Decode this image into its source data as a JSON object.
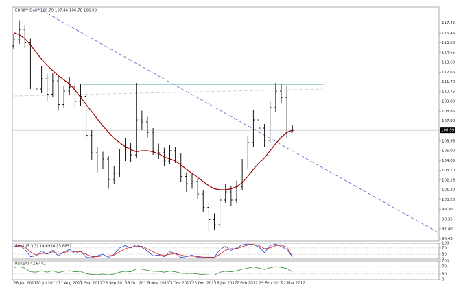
{
  "chart_data": [
    {
      "type": "ohlc",
      "title": "EURJPY,Daily 106.79 107.46 106.78 106.99",
      "categories": [
        "28 Jun 2011",
        null,
        null,
        null,
        "20 Jul 2011",
        null,
        null,
        null,
        "11 Aug 2011",
        null,
        null,
        null,
        "2 Sep 2011",
        null,
        null,
        null,
        "26 Sep 2011",
        null,
        null,
        null,
        "18 Oct 2011",
        null,
        null,
        null,
        "9 Nov 2011",
        null,
        null,
        null,
        "1 Dec 2011",
        null,
        null,
        null,
        "23 Dec 2011",
        null,
        null,
        null,
        "16 Jan 2012",
        null,
        null,
        null,
        "7 Feb 2012",
        null,
        null,
        null,
        "29 Feb 2012",
        null,
        null,
        null,
        "22 Mar 2012",
        null,
        null
      ],
      "open": [
        115.2,
        115.8,
        116.8,
        115.5,
        111.5,
        111.0,
        112.0,
        110.5,
        111.8,
        109.5,
        110.8,
        111.2,
        109.8,
        110.3,
        106.5,
        104.8,
        103.5,
        104.2,
        102.2,
        102.8,
        104.5,
        105.3,
        104.6,
        108.0,
        107.8,
        106.8,
        105.0,
        104.8,
        104.0,
        105.0,
        104.3,
        102.5,
        101.8,
        102.0,
        100.8,
        99.5,
        98.3,
        97.8,
        100.2,
        101.0,
        100.2,
        101.5,
        103.5,
        105.8,
        108.0,
        107.2,
        106.0,
        109.2,
        110.8,
        110.2,
        106.79
      ],
      "high": [
        116.4,
        117.7,
        117.2,
        115.9,
        112.6,
        113.2,
        112.5,
        112.6,
        112.3,
        111.3,
        112.2,
        111.6,
        111.5,
        110.8,
        107.0,
        105.4,
        104.9,
        104.5,
        103.5,
        105.2,
        106.2,
        105.8,
        111.6,
        108.9,
        108.3,
        107.2,
        105.7,
        105.3,
        105.6,
        105.4,
        104.8,
        102.9,
        102.8,
        102.3,
        101.2,
        100.0,
        98.9,
        100.8,
        101.8,
        101.6,
        102.1,
        104.2,
        106.4,
        109.0,
        108.6,
        107.6,
        109.8,
        111.6,
        111.5,
        111.3,
        107.46
      ],
      "low": [
        114.9,
        115.4,
        115.0,
        111.0,
        110.4,
        110.6,
        109.8,
        110.2,
        108.9,
        109.2,
        110.4,
        109.2,
        109.4,
        106.1,
        104.1,
        102.9,
        103.2,
        101.3,
        101.8,
        102.4,
        104.0,
        103.9,
        104.3,
        107.0,
        106.3,
        104.6,
        104.2,
        103.5,
        103.7,
        103.8,
        102.0,
        101.0,
        101.3,
        100.3,
        99.0,
        97.1,
        97.3,
        97.6,
        99.9,
        99.6,
        99.9,
        101.2,
        103.2,
        105.4,
        106.5,
        105.4,
        105.8,
        108.8,
        109.6,
        106.2,
        106.78
      ],
      "close": [
        115.8,
        116.8,
        115.5,
        111.5,
        111.0,
        112.0,
        110.5,
        111.8,
        109.5,
        110.8,
        111.2,
        109.8,
        110.3,
        106.5,
        104.8,
        103.5,
        104.2,
        102.2,
        102.8,
        104.5,
        105.3,
        104.6,
        108.0,
        107.8,
        106.8,
        105.0,
        104.8,
        104.0,
        105.0,
        104.3,
        102.5,
        101.8,
        102.0,
        100.8,
        99.5,
        98.3,
        97.8,
        100.2,
        101.0,
        100.2,
        101.5,
        103.5,
        105.8,
        108.0,
        107.2,
        106.0,
        109.2,
        110.8,
        110.2,
        106.8,
        106.99
      ],
      "color": "#000000",
      "ma": {
        "color": "#990000",
        "values": [
          116.5,
          116.3,
          115.9,
          115.3,
          114.6,
          113.9,
          113.3,
          112.8,
          112.3,
          111.9,
          111.5,
          110.9,
          110.2,
          109.5,
          108.8,
          108.1,
          107.4,
          106.8,
          106.2,
          105.8,
          105.4,
          105.1,
          104.9,
          105.0,
          105.0,
          104.9,
          104.7,
          104.4,
          104.2,
          104.0,
          103.6,
          103.2,
          102.8,
          102.4,
          102.0,
          101.6,
          101.3,
          101.2,
          101.2,
          101.3,
          101.5,
          101.9,
          102.5,
          103.2,
          103.8,
          104.3,
          105.0,
          105.7,
          106.3,
          106.8,
          107.0
        ]
      },
      "last_price": 106.99,
      "hlines": [
        {
          "value": 111.47,
          "x": [
            12.3,
            55.6
          ],
          "color": "#3aa99f"
        }
      ],
      "trendlines": [
        {
          "x": [
            4.3,
            76.3
          ],
          "y": [
            118.87,
            97.0
          ],
          "color": "#6a6ad0",
          "dash": true
        },
        {
          "x": [
            0,
            55.4
          ],
          "y": [
            110.33,
            111.0
          ],
          "color": "#cfcfcf",
          "dash": true
        }
      ],
      "ylim": [
        96.2,
        119.0
      ],
      "yticks": [
        117.45,
        116.45,
        {
          "value": 115.5,
          "label": "115.50"
        },
        114.55,
        {
          "value": 113.6,
          "label": "113.60"
        },
        112.65,
        {
          "value": 111.7,
          "label": "111.70"
        },
        110.75,
        {
          "value": 109.8,
          "label": "109.80"
        },
        108.85,
        {
          "value": 107.9,
          "label": "107.90"
        },
        105.95,
        {
          "value": 105.0,
          "label": "105.00"
        },
        104.05,
        {
          "value": 103.1,
          "label": "103.10"
        },
        102.15,
        {
          "value": 101.2,
          "label": "101.20"
        },
        100.25,
        {
          "value": 99.3,
          "label": "99.30"
        },
        98.35,
        {
          "value": 97.4,
          "label": "97.40"
        },
        96.45
      ]
    },
    {
      "type": "line",
      "title": "Stoch(5,3,3) 14.6938 13.8852",
      "series": [
        {
          "color": "#1f3fcf",
          "values": [
            80,
            90,
            60,
            15,
            20,
            50,
            30,
            55,
            20,
            45,
            60,
            35,
            50,
            10,
            8,
            20,
            30,
            10,
            30,
            70,
            85,
            70,
            90,
            75,
            50,
            20,
            25,
            15,
            45,
            35,
            10,
            15,
            25,
            10,
            8,
            12,
            10,
            60,
            80,
            55,
            70,
            90,
            95,
            92,
            75,
            40,
            85,
            95,
            80,
            60,
            14.6938
          ]
        },
        {
          "color": "#d02020",
          "values": [
            75,
            85,
            75,
            45,
            25,
            35,
            35,
            45,
            35,
            40,
            50,
            45,
            45,
            30,
            15,
            15,
            20,
            20,
            25,
            45,
            65,
            75,
            80,
            80,
            65,
            45,
            30,
            22,
            30,
            35,
            25,
            18,
            18,
            16,
            12,
            10,
            10,
            30,
            55,
            65,
            65,
            78,
            88,
            93,
            85,
            65,
            70,
            85,
            88,
            75,
            13.8852
          ]
        }
      ],
      "ylim": [
        0,
        100
      ],
      "yticks": [
        0,
        30,
        70,
        100
      ],
      "grid": true
    },
    {
      "type": "line",
      "title": "RSI(14) 42.6442",
      "series": [
        {
          "color": "#2e8b2e",
          "values": [
            65,
            70,
            62,
            42,
            40,
            48,
            40,
            48,
            38,
            45,
            48,
            42,
            45,
            32,
            28,
            26,
            30,
            25,
            30,
            40,
            45,
            42,
            58,
            56,
            50,
            45,
            44,
            40,
            46,
            42,
            35,
            33,
            34,
            30,
            27,
            25,
            24,
            40,
            45,
            42,
            48,
            56,
            62,
            68,
            62,
            55,
            64,
            70,
            66,
            60,
            42.6442
          ]
        }
      ],
      "ylim": [
        0,
        100
      ],
      "yticks": [
        0,
        30,
        70,
        100
      ],
      "grid": true
    }
  ]
}
